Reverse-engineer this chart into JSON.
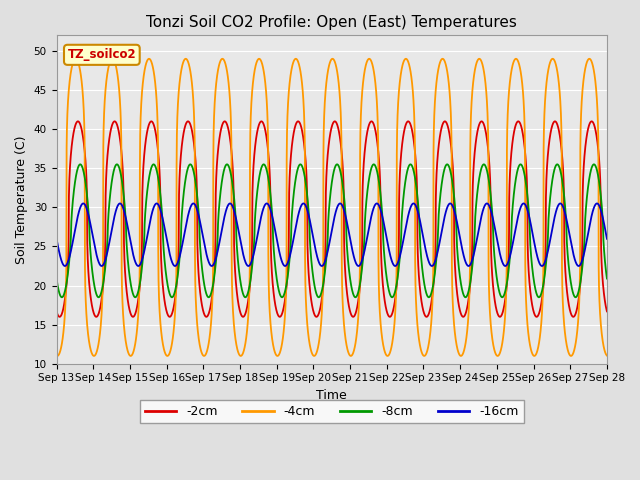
{
  "title": "Tonzi Soil CO2 Profile: Open (East) Temperatures",
  "xlabel": "Time",
  "ylabel": "Soil Temperature (C)",
  "ylim": [
    10,
    52
  ],
  "yticks": [
    10,
    15,
    20,
    25,
    30,
    35,
    40,
    45,
    50
  ],
  "series": {
    "-2cm": {
      "color": "#dd0000",
      "amp": 12.5,
      "mean": 28.5,
      "phase_hr": 14.0,
      "sharpness": 2.5
    },
    "-4cm": {
      "color": "#ff9900",
      "amp": 19.0,
      "mean": 30.0,
      "phase_hr": 12.5,
      "sharpness": 4.0
    },
    "-8cm": {
      "color": "#009900",
      "amp": 8.5,
      "mean": 27.0,
      "phase_hr": 15.5,
      "sharpness": 1.5
    },
    "-16cm": {
      "color": "#0000cc",
      "amp": 4.0,
      "mean": 26.5,
      "phase_hr": 17.5,
      "sharpness": 1.0
    }
  },
  "legend_labels": [
    "-2cm",
    "-4cm",
    "-8cm",
    "-16cm"
  ],
  "legend_colors": [
    "#dd0000",
    "#ff9900",
    "#009900",
    "#0000cc"
  ],
  "start_day": 13,
  "end_day": 28,
  "xtick_days": [
    13,
    14,
    15,
    16,
    17,
    18,
    19,
    20,
    21,
    22,
    23,
    24,
    25,
    26,
    27,
    28
  ],
  "bg_color": "#e0e0e0",
  "plot_bg_color": "#e8e8e8",
  "legend_box_color": "#ffffcc",
  "legend_box_edge": "#cc8800",
  "title_fontsize": 11,
  "axis_label_fontsize": 9,
  "tick_fontsize": 7.5,
  "legend_fontsize": 9,
  "linewidth": 1.3
}
